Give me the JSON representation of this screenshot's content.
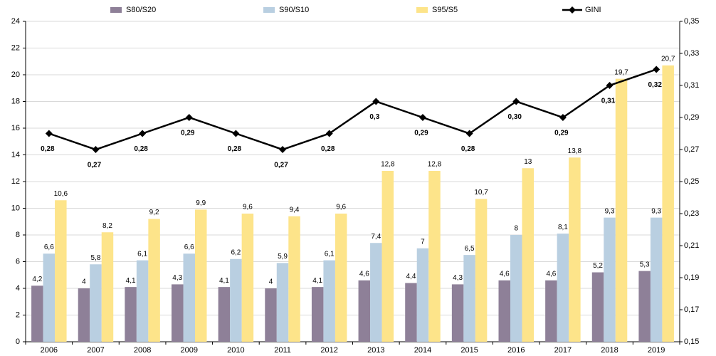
{
  "chart_data": {
    "type": "bar-line",
    "categories": [
      "2006",
      "2007",
      "2008",
      "2009",
      "2010",
      "2011",
      "2012",
      "2013",
      "2014",
      "2015",
      "2016",
      "2017",
      "2018",
      "2019"
    ],
    "series": [
      {
        "name": "S80/S20",
        "color": "#8e8098",
        "type": "bar",
        "values": [
          4.2,
          4,
          4.1,
          4.3,
          4.1,
          4,
          4.1,
          4.6,
          4.4,
          4.3,
          4.6,
          4.6,
          5.2,
          5.3
        ],
        "value_labels": [
          "4,2",
          "4",
          "4,1",
          "4,3",
          "4,1",
          "4",
          "4,1",
          "4,6",
          "4,4",
          "4,3",
          "4,6",
          "4,6",
          "5,2",
          "5,3"
        ]
      },
      {
        "name": "S90/S10",
        "color": "#b9cfe1",
        "type": "bar",
        "values": [
          6.6,
          5.8,
          6.1,
          6.6,
          6.2,
          5.9,
          6.1,
          7.4,
          7,
          6.5,
          8,
          8.1,
          9.3,
          9.3
        ],
        "value_labels": [
          "6,6",
          "5,8",
          "6,1",
          "6,6",
          "6,2",
          "5,9",
          "6,1",
          "7,4",
          "7",
          "6,5",
          "8",
          "8,1",
          "9,3",
          "9,3"
        ]
      },
      {
        "name": "S95/S5",
        "color": "#fde48a",
        "type": "bar",
        "values": [
          10.6,
          8.2,
          9.2,
          9.9,
          9.6,
          9.4,
          9.6,
          12.8,
          12.8,
          10.7,
          13,
          13.8,
          19.7,
          20.7
        ],
        "value_labels": [
          "10,6",
          "8,2",
          "9,2",
          "9,9",
          "9,6",
          "9,4",
          "9,6",
          "12,8",
          "12,8",
          "10,7",
          "13",
          "13,8",
          "19,7",
          "20,7"
        ]
      },
      {
        "name": "GINI",
        "color": "#000000",
        "type": "line",
        "axis": "y2",
        "values": [
          0.28,
          0.27,
          0.28,
          0.29,
          0.28,
          0.27,
          0.28,
          0.3,
          0.29,
          0.28,
          0.3,
          0.29,
          0.31,
          0.32
        ],
        "value_labels": [
          "0,28",
          "0,27",
          "0,28",
          "0,29",
          "0,28",
          "0,27",
          "0,28",
          "0,3",
          "0,29",
          "0,28",
          "0,30",
          "0,29",
          "0,31",
          "0,32"
        ]
      }
    ],
    "ylim": [
      0,
      24
    ],
    "yticks": [
      0,
      2,
      4,
      6,
      8,
      10,
      12,
      14,
      16,
      18,
      20,
      22,
      24
    ],
    "y2lim": [
      0.15,
      0.35
    ],
    "y2ticks": [
      {
        "value": 0.15,
        "label": "0,15"
      },
      {
        "value": 0.17,
        "label": "0,17"
      },
      {
        "value": 0.19,
        "label": "0,19"
      },
      {
        "value": 0.21,
        "label": "0,21"
      },
      {
        "value": 0.23,
        "label": "0,23"
      },
      {
        "value": 0.25,
        "label": "0,25"
      },
      {
        "value": 0.27,
        "label": "0,27"
      },
      {
        "value": 0.29,
        "label": "0,29"
      },
      {
        "value": 0.31,
        "label": "0,31"
      },
      {
        "value": 0.33,
        "label": "0,33"
      },
      {
        "value": 0.35,
        "label": "0,35"
      }
    ],
    "grid": true,
    "legend": "top"
  }
}
